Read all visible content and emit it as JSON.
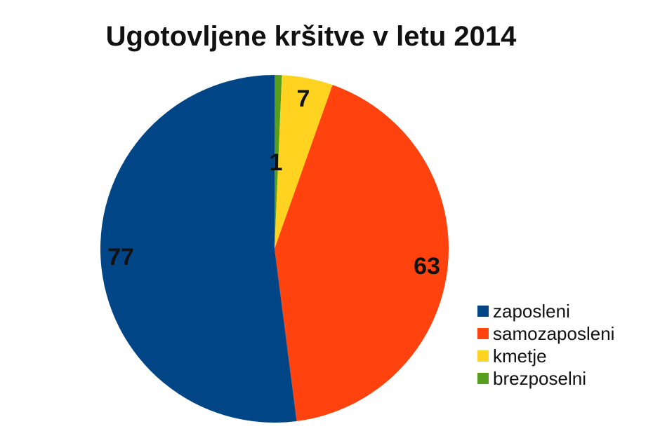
{
  "chart_data": {
    "type": "pie",
    "title": "Ugotovljene kršitve v letu 2014",
    "categories": [
      "zaposleni",
      "samozaposleni",
      "kmetje",
      "brezposelni"
    ],
    "values": [
      77,
      63,
      7,
      1
    ],
    "colors": [
      "#004586",
      "#ff420e",
      "#ffd320",
      "#579d1c"
    ],
    "legend_position": "right-bottom",
    "data_labels": [
      "77",
      "63",
      "7",
      "1"
    ]
  },
  "legend": {
    "items": [
      {
        "label": "zaposleni",
        "color": "#004586"
      },
      {
        "label": "samozaposleni",
        "color": "#ff420e"
      },
      {
        "label": "kmetje",
        "color": "#ffd320"
      },
      {
        "label": "brezposelni",
        "color": "#579d1c"
      }
    ]
  }
}
